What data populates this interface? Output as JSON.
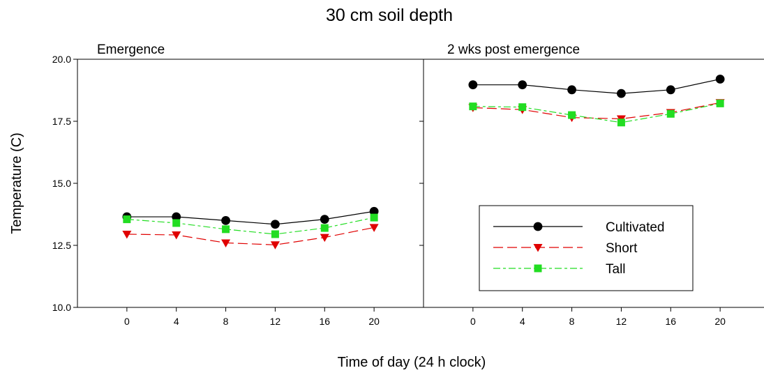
{
  "figure": {
    "title": "30 cm soil depth",
    "xlabel": "Time of day (24 h clock)",
    "ylabel": "Temperature (C)"
  },
  "colors": {
    "Cultivated": "#000000",
    "Short": "#e00000",
    "Tall": "#22dd22"
  },
  "chart_data": [
    {
      "type": "line",
      "title": "Emergence",
      "x": [
        0,
        4,
        8,
        12,
        16,
        20
      ],
      "xticks": [
        "0",
        "4",
        "8",
        "12",
        "16",
        "20"
      ],
      "xlim": [
        -4,
        24
      ],
      "ylim": [
        10.0,
        20.0
      ],
      "yticks": [
        "10.0",
        "12.5",
        "15.0",
        "17.5",
        "20.0"
      ],
      "series": [
        {
          "name": "Cultivated",
          "marker": "circle",
          "values": [
            13.65,
            13.65,
            13.5,
            13.35,
            13.55,
            13.87
          ]
        },
        {
          "name": "Short",
          "marker": "triangle-down",
          "values": [
            12.95,
            12.92,
            12.6,
            12.52,
            12.82,
            13.22
          ]
        },
        {
          "name": "Tall",
          "marker": "square",
          "values": [
            13.55,
            13.4,
            13.15,
            12.95,
            13.2,
            13.62
          ]
        }
      ]
    },
    {
      "type": "line",
      "title": "2 wks post emergence",
      "x": [
        0,
        4,
        8,
        12,
        16,
        20
      ],
      "xticks": [
        "0",
        "4",
        "8",
        "12",
        "16",
        "20"
      ],
      "xlim": [
        -4,
        24
      ],
      "ylim": [
        10.0,
        20.0
      ],
      "series": [
        {
          "name": "Cultivated",
          "marker": "circle",
          "values": [
            18.97,
            18.97,
            18.77,
            18.62,
            18.77,
            19.2
          ]
        },
        {
          "name": "Short",
          "marker": "triangle-down",
          "values": [
            18.05,
            17.97,
            17.65,
            17.6,
            17.85,
            18.25
          ]
        },
        {
          "name": "Tall",
          "marker": "square",
          "values": [
            18.1,
            18.07,
            17.75,
            17.45,
            17.8,
            18.22
          ]
        }
      ],
      "legend": {
        "position": "inside-bottom-right",
        "entries": [
          "Cultivated",
          "Short",
          "Tall"
        ]
      }
    }
  ]
}
